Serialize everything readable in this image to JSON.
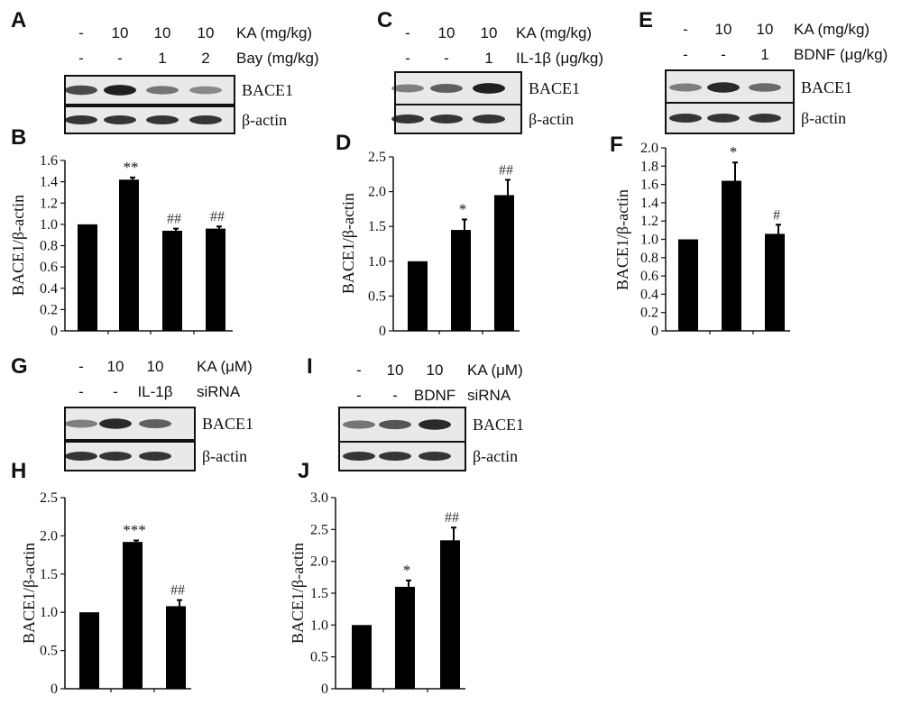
{
  "panels": [
    {
      "id": "A",
      "label": "A",
      "columns": [
        "-",
        "10",
        "10",
        "10"
      ],
      "row1_label": "KA (mg/kg)",
      "row2": [
        "-",
        "-",
        "1",
        "2"
      ],
      "row2_label": "Bay (mg/kg)",
      "blots": [
        "BACE1",
        "β-actin"
      ],
      "intensity": [
        0.75,
        0.95,
        0.55,
        0.45
      ]
    },
    {
      "id": "C",
      "label": "C",
      "columns": [
        "-",
        "10",
        "10"
      ],
      "row1_label": "KA (mg/kg)",
      "row2": [
        "-",
        "-",
        "1"
      ],
      "row2_label": "IL-1β (μg/kg)",
      "blots": [
        "BACE1",
        "β-actin"
      ],
      "intensity": [
        0.5,
        0.65,
        0.95
      ]
    },
    {
      "id": "E",
      "label": "E",
      "columns": [
        "-",
        "10",
        "10"
      ],
      "row1_label": "KA (mg/kg)",
      "row2": [
        "-",
        "-",
        "1"
      ],
      "row2_label": "BDNF (μg/kg)",
      "blots": [
        "BACE1",
        "β-actin"
      ],
      "intensity": [
        0.5,
        0.9,
        0.6
      ]
    },
    {
      "id": "G",
      "label": "G",
      "columns": [
        "-",
        "10",
        "10"
      ],
      "row1_label": "KA (μM)",
      "row2": [
        "-",
        "-",
        "IL-1β"
      ],
      "row2_label": "siRNA",
      "blots": [
        "BACE1",
        "β-actin"
      ],
      "intensity": [
        0.5,
        0.9,
        0.65
      ]
    },
    {
      "id": "I",
      "label": "I",
      "columns": [
        "-",
        "10",
        "10"
      ],
      "row1_label": "KA (μM)",
      "row2": [
        "-",
        "-",
        "BDNF"
      ],
      "row2_label": "siRNA",
      "blots": [
        "BACE1",
        "β-actin"
      ],
      "intensity": [
        0.55,
        0.7,
        0.9
      ]
    }
  ],
  "chart_data": [
    {
      "panel": "B",
      "type": "bar",
      "ylabel": "BACE1/β-actin",
      "ylim": [
        0,
        1.6
      ],
      "yticks": [
        "0",
        "0.2",
        "0.4",
        "0.6",
        "0.8",
        "1.0",
        "1.2",
        "1.4",
        "1.6"
      ],
      "values": [
        1.0,
        1.42,
        0.94,
        0.96
      ],
      "errors": [
        0,
        0.02,
        0.02,
        0.02
      ],
      "sig": [
        "",
        "**",
        "##",
        "##"
      ]
    },
    {
      "panel": "D",
      "type": "bar",
      "ylabel": "BACE1/β-actin",
      "ylim": [
        0,
        2.5
      ],
      "yticks": [
        "0",
        "0.5",
        "1.0",
        "1.5",
        "2.0",
        "2.5"
      ],
      "values": [
        1.0,
        1.45,
        1.95
      ],
      "errors": [
        0,
        0.15,
        0.22
      ],
      "sig": [
        "",
        "*",
        "##"
      ]
    },
    {
      "panel": "F",
      "type": "bar",
      "ylabel": "BACE1/β-actin",
      "ylim": [
        0,
        2.0
      ],
      "yticks": [
        "0",
        "0.2",
        "0.4",
        "0.6",
        "0.8",
        "1.0",
        "1.2",
        "1.4",
        "1.6",
        "1.8",
        "2.0"
      ],
      "values": [
        1.0,
        1.64,
        1.06
      ],
      "errors": [
        0,
        0.2,
        0.1
      ],
      "sig": [
        "",
        "*",
        "#"
      ]
    },
    {
      "panel": "H",
      "type": "bar",
      "ylabel": "BACE1/β-actin",
      "ylim": [
        0,
        2.5
      ],
      "yticks": [
        "0",
        "0.5",
        "1.0",
        "1.5",
        "2.0",
        "2.5"
      ],
      "values": [
        1.0,
        1.92,
        1.08
      ],
      "errors": [
        0,
        0.02,
        0.08
      ],
      "sig": [
        "",
        "***",
        "##"
      ]
    },
    {
      "panel": "J",
      "type": "bar",
      "ylabel": "BACE1/β-actin",
      "ylim": [
        0,
        3.0
      ],
      "yticks": [
        "0",
        "0.5",
        "1.0",
        "1.5",
        "2.0",
        "2.5",
        "3.0"
      ],
      "values": [
        1.0,
        1.6,
        2.33
      ],
      "errors": [
        0,
        0.1,
        0.2
      ],
      "sig": [
        "",
        "*",
        "##"
      ]
    }
  ]
}
